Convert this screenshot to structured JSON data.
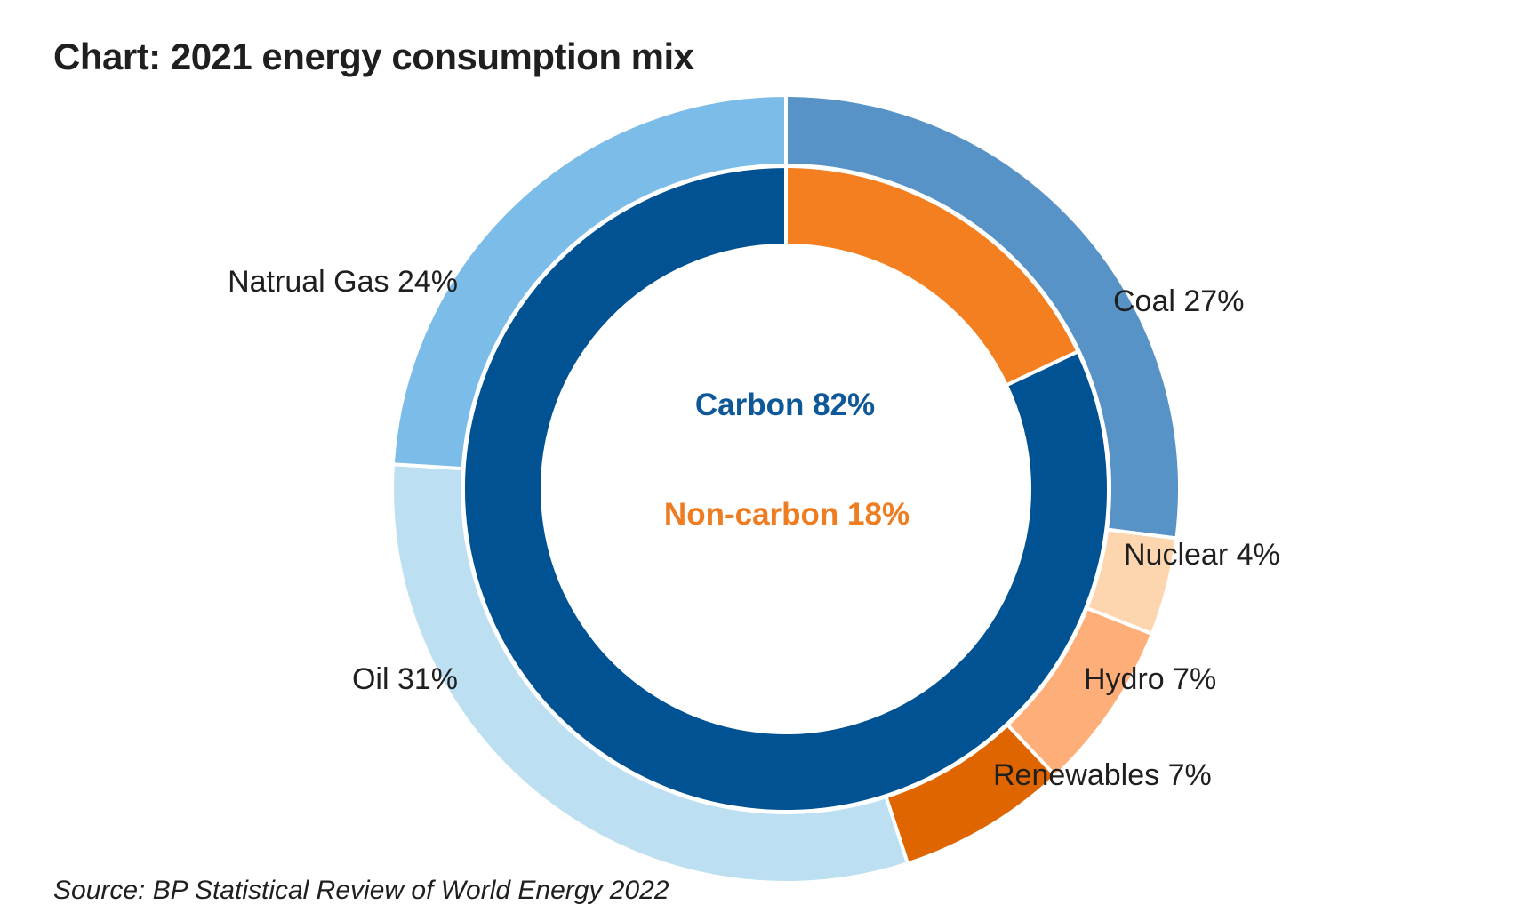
{
  "title": "Chart: 2021 energy consumption mix",
  "source": "Source: BP Statistical Review of World Energy 2022",
  "chart_data": {
    "type": "pie",
    "subtype": "nested-donut",
    "start": "12 o'clock",
    "direction": "clockwise",
    "inner_ring": [
      {
        "name": "Non-carbon",
        "label": "Non-carbon 18%",
        "value": 18,
        "color": "#f47f20",
        "label_color": "#ee7d22"
      },
      {
        "name": "Carbon",
        "label": "Carbon 82%",
        "value": 82,
        "color": "#005293",
        "label_color": "#0f5898"
      }
    ],
    "outer_ring": [
      {
        "name": "Coal",
        "label": "Coal 27%",
        "value": 27,
        "color": "#5793c7"
      },
      {
        "name": "Nuclear",
        "label": "Nuclear 4%",
        "value": 4,
        "color": "#fdd6af"
      },
      {
        "name": "Hydro",
        "label": "Hydro 7%",
        "value": 7,
        "color": "#fdae79"
      },
      {
        "name": "Renewables",
        "label": "Renewables 7%",
        "value": 7,
        "color": "#df6500"
      },
      {
        "name": "Oil",
        "label": "Oil 31%",
        "value": 31,
        "color": "#bcdff1"
      },
      {
        "name": "Natrual Gas",
        "label": "Natrual Gas 24%",
        "value": 24,
        "color": "#7bbce8"
      }
    ]
  }
}
